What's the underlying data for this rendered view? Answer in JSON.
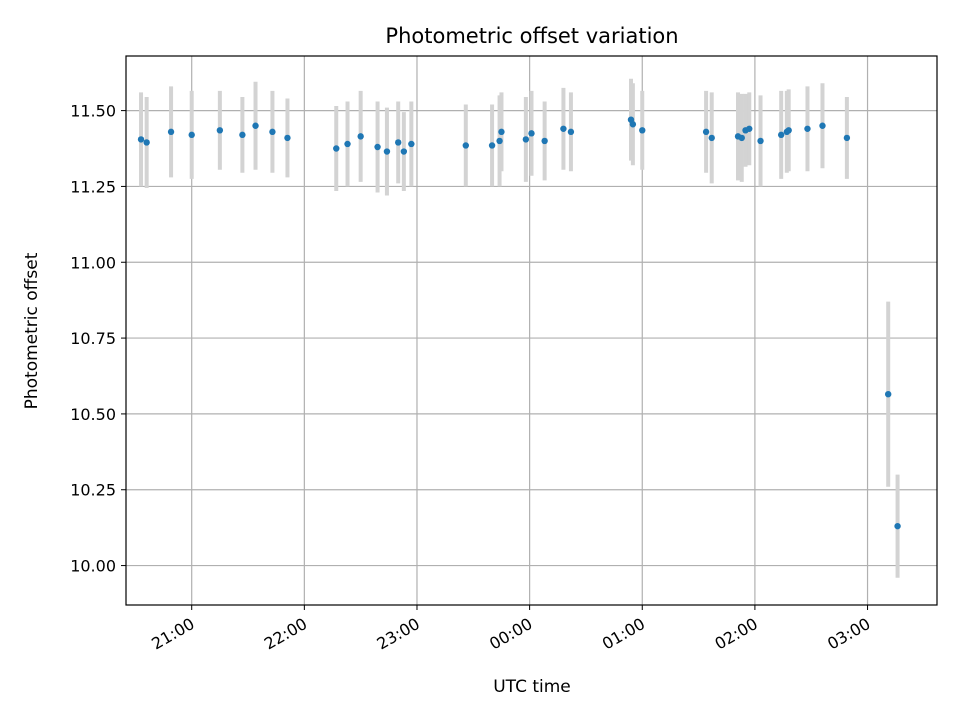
{
  "chart_data": {
    "type": "scatter",
    "title": "Photometric offset variation",
    "xlabel": "UTC time",
    "ylabel": "Photometric offset",
    "x_tick_labels": [
      "21:00",
      "22:00",
      "23:00",
      "00:00",
      "01:00",
      "02:00",
      "03:00"
    ],
    "y_tick_labels": [
      "10.00",
      "10.25",
      "10.50",
      "10.75",
      "11.00",
      "11.25",
      "11.50"
    ],
    "y_ticks": [
      10.0,
      10.25,
      10.5,
      10.75,
      11.0,
      11.25,
      11.5
    ],
    "ylim": [
      9.87,
      11.68
    ],
    "xlim": [
      "20:25",
      "03:37"
    ],
    "grid": true,
    "series": [
      {
        "x": [
          "20:33",
          "20:36",
          "20:49",
          "21:00",
          "21:15",
          "21:27",
          "21:34",
          "21:43",
          "21:51",
          "22:17",
          "22:23",
          "22:30",
          "22:39",
          "22:44",
          "22:50",
          "22:53",
          "22:57",
          "23:26",
          "23:40",
          "23:44",
          "23:45",
          "23:58",
          "24:01",
          "24:08",
          "24:18",
          "24:22",
          "24:54",
          "24:55",
          "25:00",
          "25:34",
          "25:37",
          "25:51",
          "25:53",
          "25:55",
          "25:57",
          "26:03",
          "26:14",
          "26:17",
          "26:18",
          "26:28",
          "26:36",
          "26:49",
          "27:11",
          "27:16"
        ],
        "y": [
          11.405,
          11.395,
          11.43,
          11.42,
          11.435,
          11.42,
          11.45,
          11.43,
          11.41,
          11.375,
          11.39,
          11.415,
          11.38,
          11.365,
          11.395,
          11.365,
          11.39,
          11.385,
          11.385,
          11.4,
          11.43,
          11.405,
          11.425,
          11.4,
          11.44,
          11.43,
          11.47,
          11.455,
          11.435,
          11.43,
          11.41,
          11.415,
          11.41,
          11.435,
          11.44,
          11.4,
          11.42,
          11.43,
          11.435,
          11.44,
          11.45,
          11.41,
          10.565,
          10.13
        ],
        "yerr": [
          0.155,
          0.15,
          0.15,
          0.145,
          0.13,
          0.125,
          0.145,
          0.135,
          0.13,
          0.14,
          0.14,
          0.15,
          0.15,
          0.145,
          0.135,
          0.13,
          0.14,
          0.135,
          0.135,
          0.15,
          0.13,
          0.14,
          0.14,
          0.13,
          0.135,
          0.13,
          0.135,
          0.135,
          0.13,
          0.135,
          0.15,
          0.145,
          0.145,
          0.12,
          0.12,
          0.15,
          0.145,
          0.135,
          0.135,
          0.14,
          0.14,
          0.135,
          0.305,
          0.17
        ]
      }
    ],
    "colors": {
      "point": "#1f77b4",
      "errorbar": "#d3d3d3",
      "grid": "#b0b0b0",
      "axes": "#000000"
    }
  }
}
